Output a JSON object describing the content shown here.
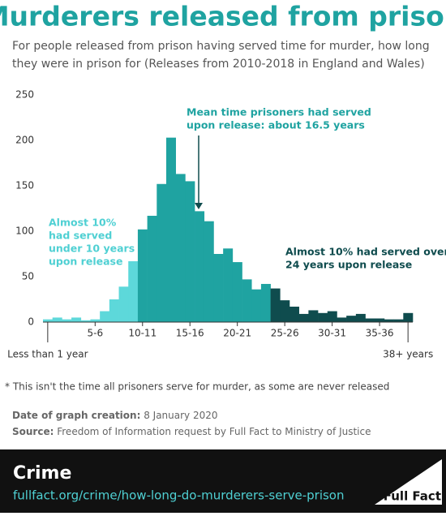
{
  "chart_data": {
    "type": "bar",
    "title": "Murderers released from prison",
    "subtitle": [
      "For people released from prison having served time for murder, how long",
      "they were in prison for (Releases from 2010-2018 in England and Wales)"
    ],
    "categories": [
      "Less than 1 year",
      null,
      null,
      null,
      null,
      "5-6",
      null,
      null,
      null,
      null,
      "10-11",
      null,
      null,
      null,
      null,
      "15-16",
      null,
      null,
      null,
      null,
      "20-21",
      null,
      null,
      null,
      null,
      "25-26",
      null,
      null,
      null,
      null,
      "30-31",
      null,
      null,
      null,
      null,
      "35-36",
      null,
      null,
      "38+ years"
    ],
    "values": [
      3,
      5,
      3,
      5,
      2,
      3,
      12,
      25,
      39,
      67,
      102,
      117,
      152,
      203,
      163,
      155,
      122,
      111,
      75,
      81,
      66,
      47,
      36,
      42,
      37,
      24,
      17,
      9,
      13,
      10,
      12,
      5,
      7,
      9,
      4,
      4,
      3,
      3,
      10
    ],
    "bar_colors": [
      "#5dd8da",
      "#5dd8da",
      "#5dd8da",
      "#5dd8da",
      "#5dd8da",
      "#5dd8da",
      "#5dd8da",
      "#5dd8da",
      "#5dd8da",
      "#5dd8da",
      "#1fa3a1",
      "#1fa3a1",
      "#1fa3a1",
      "#1fa3a1",
      "#1fa3a1",
      "#1fa3a1",
      "#1fa3a1",
      "#1fa3a1",
      "#1fa3a1",
      "#1fa3a1",
      "#1fa3a1",
      "#1fa3a1",
      "#1fa3a1",
      "#1fa3a1",
      "#0f4c4e",
      "#0f4c4e",
      "#0f4c4e",
      "#0f4c4e",
      "#0f4c4e",
      "#0f4c4e",
      "#0f4c4e",
      "#0f4c4e",
      "#0f4c4e",
      "#0f4c4e",
      "#0f4c4e",
      "#0f4c4e",
      "#0f4c4e",
      "#0f4c4e",
      "#0f4c4e"
    ],
    "ylim": [
      0,
      250
    ],
    "yticks": [
      0,
      50,
      100,
      150,
      200,
      250
    ],
    "grid": false,
    "annotations": [
      {
        "text": [
          "Almost 10%",
          "had served",
          "under 10 years",
          "upon release"
        ],
        "color": "#4fd0d3"
      },
      {
        "text": [
          "Mean time prisoners had served",
          "upon release: about 16.5 years"
        ],
        "color": "#1fa3a1"
      },
      {
        "text": [
          "Almost 10% had served over",
          "24 years upon release"
        ],
        "color": "#0f4c4e"
      }
    ],
    "footnote": "* This isn't the time all prisoners serve for murder, as some are never released",
    "date_label": "Date of graph creation:",
    "date": "8 January 2020",
    "source_label": "Source:",
    "source": "Freedom of Information request by Full Fact to Ministry of Justice"
  },
  "footer": {
    "topic": "Crime",
    "url": "fullfact.org/crime/how-long-do-murderers-serve-prison",
    "brand": "Full Fact"
  }
}
